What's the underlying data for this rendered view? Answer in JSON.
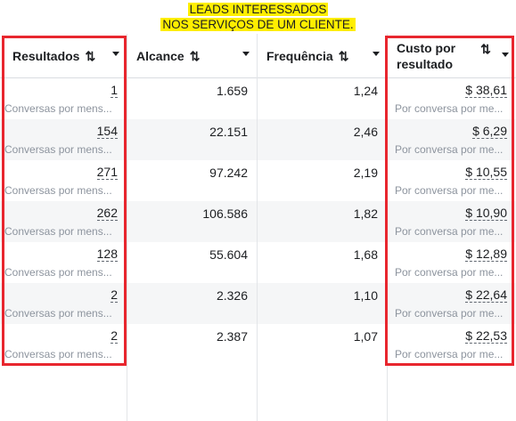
{
  "banner": {
    "line1": "LEADS INTERESSADOS",
    "line2": "NOS SERVIÇOS DE UM CLIENTE."
  },
  "accent": "#e8262e",
  "highlight": "#ffee00",
  "columns": {
    "resultados": "Resultados",
    "alcance": "Alcance",
    "frequencia": "Frequência",
    "custo_line1": "Custo por",
    "custo_line2": "resultado",
    "sort_icon": "⇅"
  },
  "rows": [
    {
      "resultados": "1",
      "resultados_sub": "Conversas por mens...",
      "alcance": "1.659",
      "frequencia": "1,24",
      "custo": "$ 38,61",
      "custo_sub": "Por conversa por me..."
    },
    {
      "resultados": "154",
      "resultados_sub": "Conversas por mens...",
      "alcance": "22.151",
      "frequencia": "2,46",
      "custo": "$ 6,29",
      "custo_sub": "Por conversa por me..."
    },
    {
      "resultados": "271",
      "resultados_sub": "Conversas por mens...",
      "alcance": "97.242",
      "frequencia": "2,19",
      "custo": "$ 10,55",
      "custo_sub": "Por conversa por me..."
    },
    {
      "resultados": "262",
      "resultados_sub": "Conversas por mens...",
      "alcance": "106.586",
      "frequencia": "1,82",
      "custo": "$ 10,90",
      "custo_sub": "Por conversa por me..."
    },
    {
      "resultados": "128",
      "resultados_sub": "Conversas por mens...",
      "alcance": "55.604",
      "frequencia": "1,68",
      "custo": "$ 12,89",
      "custo_sub": "Por conversa por me..."
    },
    {
      "resultados": "2",
      "resultados_sub": "Conversas por mens...",
      "alcance": "2.326",
      "frequencia": "1,10",
      "custo": "$ 22,64",
      "custo_sub": "Por conversa por me..."
    },
    {
      "resultados": "2",
      "resultados_sub": "Conversas por mens...",
      "alcance": "2.387",
      "frequencia": "1,07",
      "custo": "$ 22,53",
      "custo_sub": "Por conversa por me..."
    }
  ]
}
